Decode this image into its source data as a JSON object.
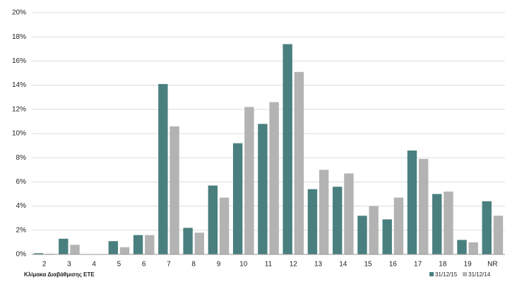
{
  "chart_data": {
    "type": "bar",
    "x_label": "Κλίμακα Διαβάθμισης ETE",
    "categories": [
      "2",
      "3",
      "4",
      "5",
      "6",
      "7",
      "8",
      "9",
      "10",
      "11",
      "12",
      "13",
      "14",
      "15",
      "16",
      "17",
      "18",
      "19",
      "NR"
    ],
    "series": [
      {
        "name": "31/12/15",
        "color": "#4a7f7f",
        "values": [
          0.1,
          1.3,
          0,
          1.1,
          1.6,
          14.1,
          2.2,
          5.7,
          9.2,
          10.8,
          17.4,
          5.4,
          5.6,
          3.2,
          2.9,
          8.6,
          5.0,
          1.2,
          4.4
        ]
      },
      {
        "name": "31/12/14",
        "color": "#b3b3b3",
        "values": [
          0.05,
          0.8,
          0,
          0.6,
          1.6,
          10.6,
          1.8,
          4.7,
          12.2,
          12.6,
          15.1,
          7.0,
          6.7,
          4.0,
          4.7,
          7.9,
          5.2,
          1.0,
          3.2
        ]
      }
    ],
    "ylim": [
      0,
      20
    ],
    "yticks": [
      {
        "value": 0,
        "label": "0%"
      },
      {
        "value": 2,
        "label": "2%"
      },
      {
        "value": 4,
        "label": "4%"
      },
      {
        "value": 6,
        "label": "6%"
      },
      {
        "value": 8,
        "label": "8%"
      },
      {
        "value": 10,
        "label": "10%"
      },
      {
        "value": 12,
        "label": "12%"
      },
      {
        "value": 14,
        "label": "14%"
      },
      {
        "value": 16,
        "label": "16%"
      },
      {
        "value": 18,
        "label": "18%"
      },
      {
        "value": 20,
        "label": "20%"
      }
    ],
    "grid": true,
    "legend": "bottom-right"
  }
}
